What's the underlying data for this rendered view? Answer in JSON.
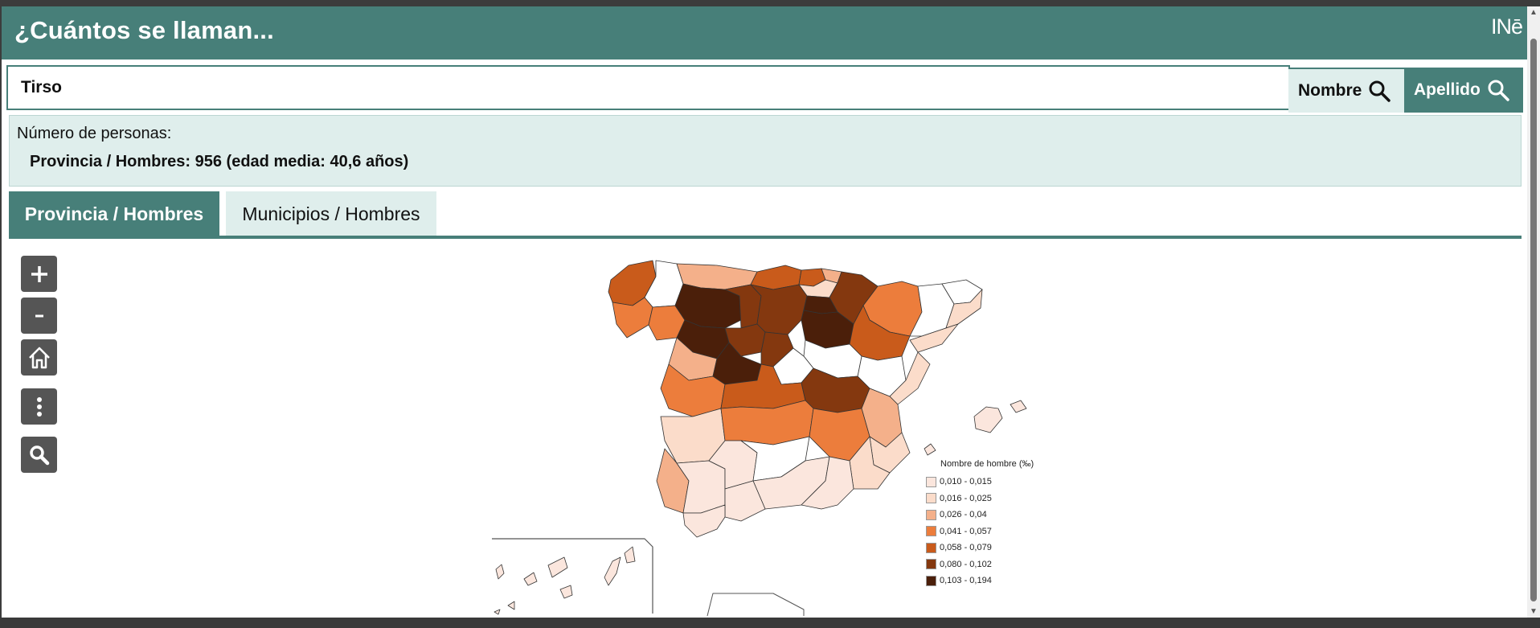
{
  "header": {
    "title": "¿Cuántos se llaman...",
    "logo_text": "INē"
  },
  "search": {
    "value": "Tirso",
    "nombre_label": "Nombre",
    "apellido_label": "Apellido"
  },
  "result": {
    "label": "Número de personas:",
    "value": "Provincia / Hombres: 956 (edad media: 40,6 años)"
  },
  "tabs": [
    {
      "label": "Provincia / Hombres",
      "active": true
    },
    {
      "label": "Municipios / Hombres",
      "active": false
    }
  ],
  "map_controls": [
    "zoom-in",
    "zoom-out",
    "home",
    "more",
    "search"
  ],
  "legend": {
    "title": "Nombre de hombre (‰)",
    "items": [
      {
        "label": "0,010 - 0,015",
        "color": "#fbe6dd"
      },
      {
        "label": "0,016 - 0,025",
        "color": "#fbdcca"
      },
      {
        "label": "0,026 - 0,04",
        "color": "#f4b08a"
      },
      {
        "label": "0,041 - 0,057",
        "color": "#ec7d3c"
      },
      {
        "label": "0,058 - 0,079",
        "color": "#c95b1b"
      },
      {
        "label": "0,080 - 0,102",
        "color": "#84380f"
      },
      {
        "label": "0,103 - 0,194",
        "color": "#4b1f0a"
      }
    ]
  },
  "colors": {
    "primary": "#477f79",
    "panel_bg": "#dfeeec"
  }
}
